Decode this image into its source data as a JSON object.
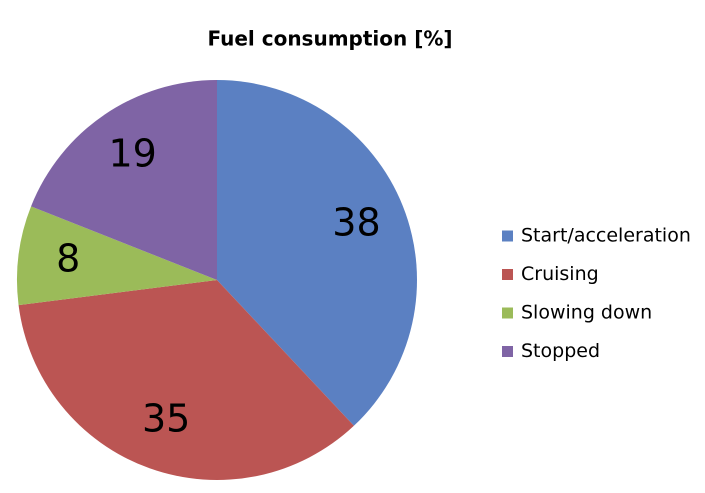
{
  "chart_data": {
    "type": "pie",
    "title": "Fuel consumption [%]",
    "categories": [
      "Start/acceleration",
      "Cruising",
      "Slowing down",
      "Stopped"
    ],
    "values": [
      38,
      35,
      8,
      19
    ],
    "colors": [
      "#5b80c2",
      "#bb5553",
      "#9bbb59",
      "#7f64a5"
    ]
  }
}
